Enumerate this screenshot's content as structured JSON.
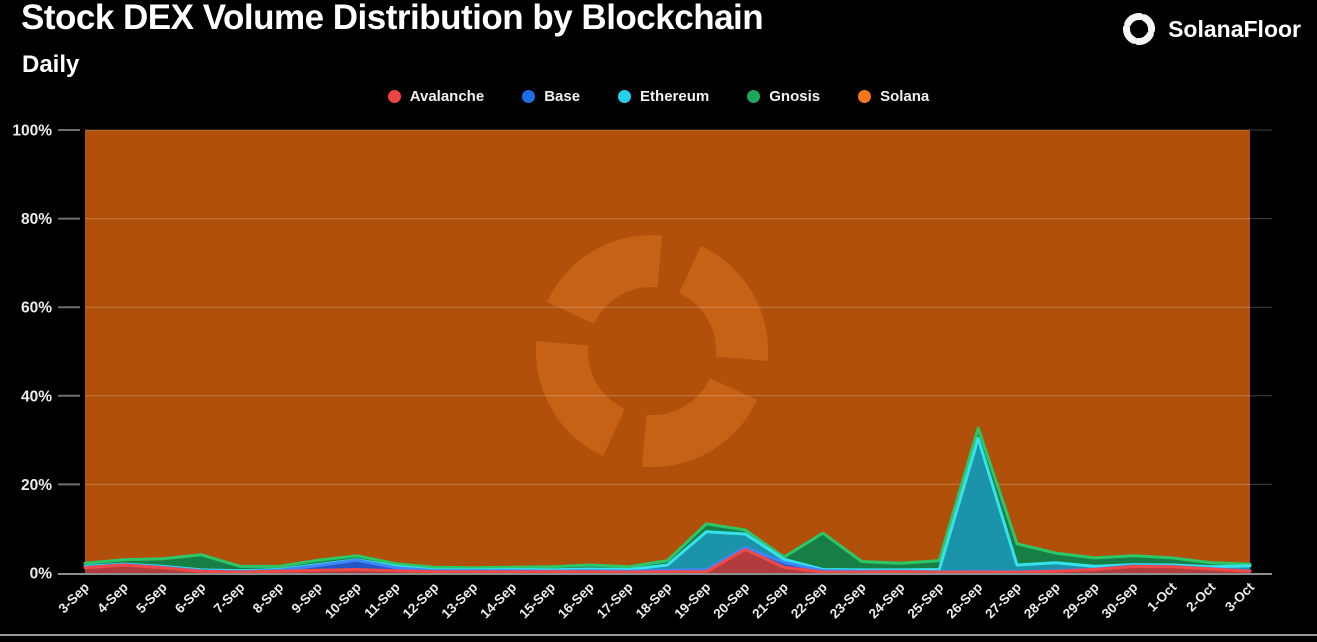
{
  "header": {
    "title": "Stock DEX Volume Distribution by Blockchain",
    "subtitle": "Daily",
    "brand": "SolanaFloor"
  },
  "legend": [
    {
      "label": "Avalanche",
      "color": "#ee4444"
    },
    {
      "label": "Base",
      "color": "#1d6fe8"
    },
    {
      "label": "Ethereum",
      "color": "#27d2e9"
    },
    {
      "label": "Gnosis",
      "color": "#1da85c"
    },
    {
      "label": "Solana",
      "color": "#f2781b"
    }
  ],
  "chart_data": {
    "type": "area",
    "stacked": true,
    "unit": "percent",
    "title": "Stock DEX Volume Distribution by Blockchain",
    "subtitle": "Daily",
    "xlabel": "",
    "ylabel": "",
    "ylim": [
      0,
      100
    ],
    "grid": "horizontal",
    "legend_position": "top",
    "watermark": "solanafloor-logo",
    "y_ticks": [
      {
        "label": "100%",
        "value": 100
      },
      {
        "label": "80%",
        "value": 80
      },
      {
        "label": "60%",
        "value": 60
      },
      {
        "label": "40%",
        "value": 40
      },
      {
        "label": "20%",
        "value": 20
      },
      {
        "label": "0%",
        "value": 0
      }
    ],
    "x": [
      "3-Sep",
      "4-Sep",
      "5-Sep",
      "6-Sep",
      "7-Sep",
      "8-Sep",
      "9-Sep",
      "10-Sep",
      "11-Sep",
      "12-Sep",
      "13-Sep",
      "14-Sep",
      "15-Sep",
      "16-Sep",
      "17-Sep",
      "18-Sep",
      "19-Sep",
      "20-Sep",
      "21-Sep",
      "22-Sep",
      "23-Sep",
      "24-Sep",
      "25-Sep",
      "26-Sep",
      "27-Sep",
      "28-Sep",
      "29-Sep",
      "30-Sep",
      "1-Oct",
      "2-Oct",
      "3-Oct"
    ],
    "series": [
      {
        "name": "Avalanche",
        "fill": "#b23b3e",
        "stroke": "#ef4a4a",
        "values": [
          1.2,
          1.8,
          1.2,
          0.4,
          0.2,
          0.4,
          0.6,
          0.8,
          0.5,
          0.3,
          0.3,
          0.3,
          0.3,
          0.3,
          0.2,
          0.3,
          0.3,
          5.3,
          1.3,
          0.2,
          0.2,
          0.3,
          0.2,
          0.2,
          0.2,
          0.4,
          0.8,
          1.5,
          1.4,
          0.9,
          0.4
        ]
      },
      {
        "name": "Base",
        "fill": "#2457c5",
        "stroke": "#3f86f8",
        "values": [
          0.1,
          0.1,
          0.1,
          0.1,
          0.1,
          0.2,
          1.1,
          2.1,
          0.7,
          0.2,
          0.2,
          0.2,
          0.1,
          0.2,
          0.2,
          0.3,
          0.5,
          0.5,
          1.1,
          0.3,
          0.2,
          0.1,
          0.1,
          0.2,
          0.1,
          0.1,
          0.1,
          0.1,
          0.1,
          0.1,
          0.1
        ]
      },
      {
        "name": "Ethereum",
        "fill": "#1b93a8",
        "stroke": "#38e1ee",
        "values": [
          0.2,
          0.1,
          0.2,
          0.2,
          0.2,
          0.2,
          0.2,
          0.1,
          0.3,
          0.2,
          0.2,
          0.3,
          0.3,
          0.4,
          0.4,
          1.2,
          8.5,
          3.0,
          0.7,
          0.3,
          0.3,
          0.3,
          0.5,
          30.0,
          1.5,
          1.8,
          0.6,
          0.3,
          0.3,
          0.4,
          1.1
        ]
      },
      {
        "name": "Gnosis",
        "fill": "#177f46",
        "stroke": "#2bc768",
        "values": [
          0.7,
          1.0,
          1.7,
          3.4,
          1.0,
          0.7,
          1.0,
          0.9,
          0.6,
          0.6,
          0.5,
          0.5,
          0.7,
          0.9,
          0.6,
          1.0,
          1.8,
          0.9,
          0.5,
          8.2,
          1.9,
          1.5,
          2.0,
          2.3,
          4.8,
          2.2,
          1.9,
          2.0,
          1.6,
          0.9,
          0.4
        ]
      },
      {
        "name": "Solana",
        "fill": "#b0500a",
        "stroke": "#b0500a",
        "values": [
          97.8,
          97.0,
          96.8,
          95.9,
          98.5,
          98.5,
          97.1,
          96.1,
          97.9,
          98.7,
          98.8,
          98.7,
          98.6,
          98.2,
          98.6,
          97.2,
          88.9,
          90.3,
          96.4,
          91.0,
          97.4,
          97.8,
          97.2,
          67.3,
          93.4,
          95.5,
          96.6,
          96.1,
          96.6,
          97.7,
          98.0
        ]
      }
    ]
  },
  "colors": {
    "background": "#000000",
    "title": "#ffffff",
    "axis_text": "#ececec",
    "gridline": "rgba(255,255,255,0.25)",
    "baseline": "#8f8f8f",
    "tick": "#6f6f6f",
    "bottom_border": "#9b9b9b",
    "watermark": "#c66116",
    "logo": "#f5f5f5"
  }
}
